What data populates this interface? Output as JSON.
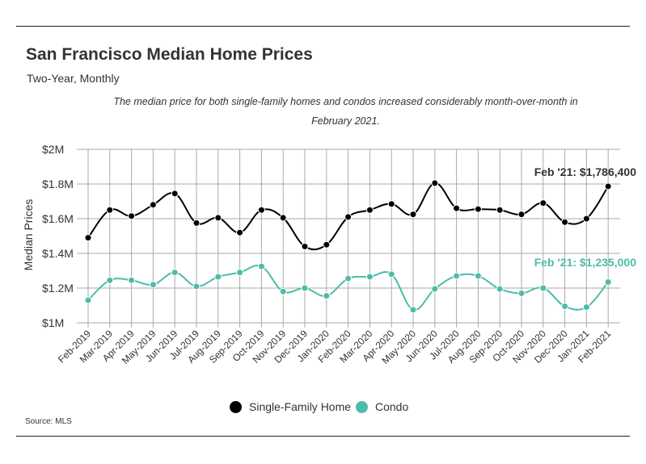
{
  "header": {
    "title": "San Francisco Median Home Prices",
    "subtitle": "Two-Year, Monthly",
    "note_line1": "The median price for both single-family homes and condos increased considerably month-over-month in",
    "note_line2": "February 2021."
  },
  "footer": {
    "source": "Source:  MLS"
  },
  "colors": {
    "single_family": "#000000",
    "condo": "#4dbca8",
    "grid": "#aaaaaa",
    "text": "#333333"
  },
  "chart_data": {
    "type": "line",
    "ylabel": "Median Prices",
    "xlabel": "",
    "ylim": [
      1000000,
      2000000
    ],
    "yticks": [
      {
        "value": 2000000,
        "label": "$2M"
      },
      {
        "value": 1800000,
        "label": "$1.8M"
      },
      {
        "value": 1600000,
        "label": "$1.6M"
      },
      {
        "value": 1400000,
        "label": "$1.4M"
      },
      {
        "value": 1200000,
        "label": "$1.2M"
      },
      {
        "value": 1000000,
        "label": "$1M"
      }
    ],
    "categories": [
      "Feb-2019",
      "Mar-2019",
      "Apr-2019",
      "May-2019",
      "Jun-2019",
      "Jul-2019",
      "Aug-2019",
      "Sep-2019",
      "Oct-2019",
      "Nov-2019",
      "Dec-2019",
      "Jan-2020",
      "Feb-2020",
      "Mar-2020",
      "Apr-2020",
      "May-2020",
      "Jun-2020",
      "Jul-2020",
      "Aug-2020",
      "Sep-2020",
      "Oct-2020",
      "Nov-2020",
      "Dec-2020",
      "Jan-2021",
      "Feb-2021"
    ],
    "series": [
      {
        "name": "Single-Family Home",
        "color": "#000000",
        "values": [
          1490000,
          1650000,
          1615000,
          1680000,
          1745000,
          1575000,
          1605000,
          1520000,
          1650000,
          1605000,
          1440000,
          1450000,
          1610000,
          1650000,
          1685000,
          1625000,
          1805000,
          1660000,
          1655000,
          1650000,
          1625000,
          1690000,
          1580000,
          1600000,
          1786400
        ],
        "end_label": "Feb '21: $1,786,400"
      },
      {
        "name": "Condo",
        "color": "#4dbca8",
        "values": [
          1130000,
          1245000,
          1245000,
          1220000,
          1290000,
          1210000,
          1265000,
          1290000,
          1325000,
          1180000,
          1200000,
          1155000,
          1255000,
          1265000,
          1280000,
          1075000,
          1195000,
          1270000,
          1270000,
          1195000,
          1170000,
          1200000,
          1095000,
          1090000,
          1235000
        ],
        "end_label": "Feb '21: $1,235,000"
      }
    ],
    "grid": true,
    "legend_position": "bottom-center"
  }
}
